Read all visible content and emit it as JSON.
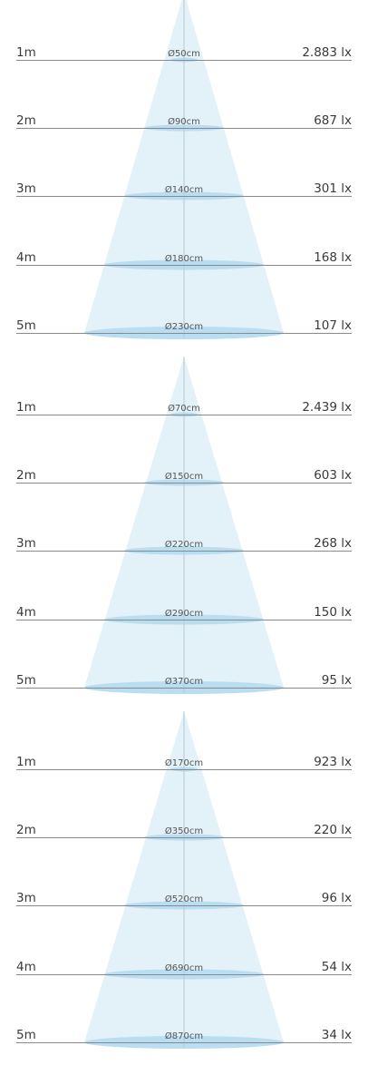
{
  "colors": {
    "cone_fill": "#e3f1f9",
    "ellipse_fill": "#b9def2",
    "line": "#8a8a8a",
    "axis": "#b7c9d3",
    "text": "#3a3a3a"
  },
  "panels": [
    {
      "rows": [
        {
          "distance": "1m",
          "diameter": "Ø50cm",
          "lux": "2.883 lx"
        },
        {
          "distance": "2m",
          "diameter": "Ø90cm",
          "lux": "687 lx"
        },
        {
          "distance": "3m",
          "diameter": "Ø140cm",
          "lux": "301 lx"
        },
        {
          "distance": "4m",
          "diameter": "Ø180cm",
          "lux": "168 lx"
        },
        {
          "distance": "5m",
          "diameter": "Ø230cm",
          "lux": "107 lx"
        }
      ]
    },
    {
      "rows": [
        {
          "distance": "1m",
          "diameter": "Ø70cm",
          "lux": "2.439 lx"
        },
        {
          "distance": "2m",
          "diameter": "Ø150cm",
          "lux": "603 lx"
        },
        {
          "distance": "3m",
          "diameter": "Ø220cm",
          "lux": "268 lx"
        },
        {
          "distance": "4m",
          "diameter": "Ø290cm",
          "lux": "150 lx"
        },
        {
          "distance": "5m",
          "diameter": "Ø370cm",
          "lux": "95 lx"
        }
      ]
    },
    {
      "rows": [
        {
          "distance": "1m",
          "diameter": "Ø170cm",
          "lux": "923 lx"
        },
        {
          "distance": "2m",
          "diameter": "Ø350cm",
          "lux": "220 lx"
        },
        {
          "distance": "3m",
          "diameter": "Ø520cm",
          "lux": "96 lx"
        },
        {
          "distance": "4m",
          "diameter": "Ø690cm",
          "lux": "54 lx"
        },
        {
          "distance": "5m",
          "diameter": "Ø870cm",
          "lux": "34 lx"
        }
      ]
    }
  ]
}
